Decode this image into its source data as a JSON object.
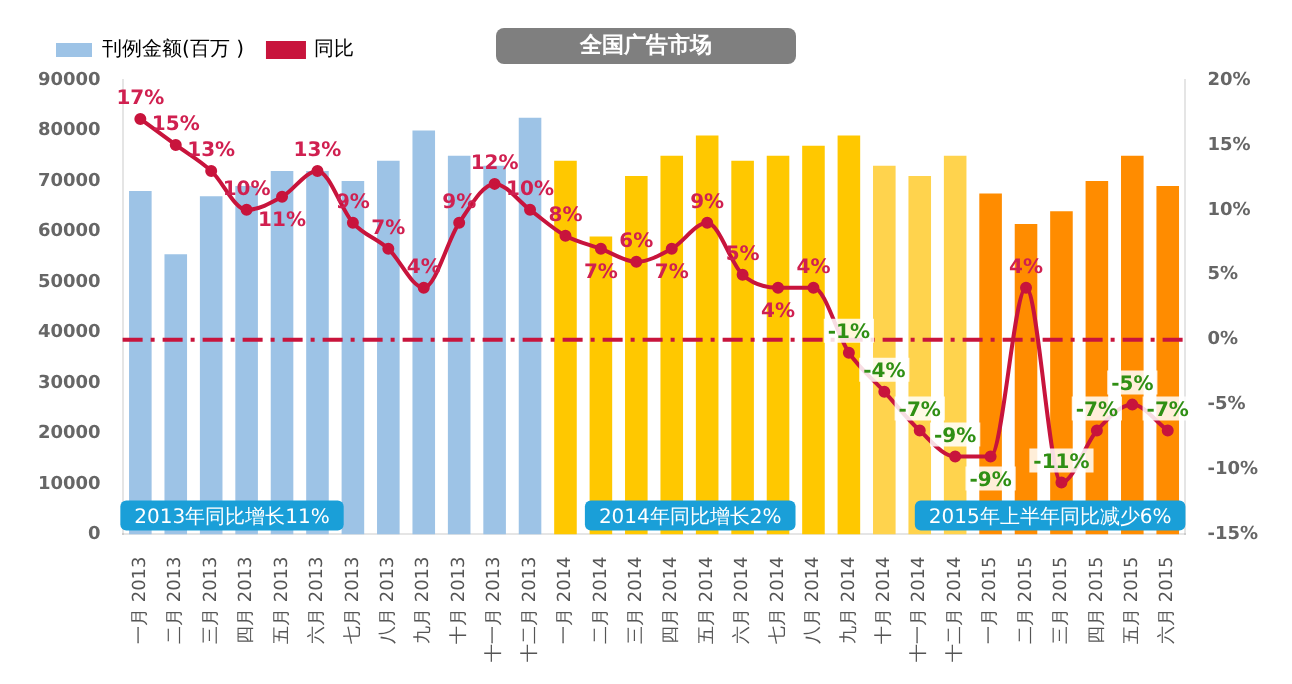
{
  "chart_data": {
    "type": "bar",
    "title": "全国广告市场",
    "categories": [
      "一月 2013",
      "二月 2013",
      "三月 2013",
      "四月 2013",
      "五月 2013",
      "六月 2013",
      "七月 2013",
      "八月 2013",
      "九月 2013",
      "十月 2013",
      "十一月 2013",
      "十二月 2013",
      "一月 2014",
      "二月 2014",
      "三月 2014",
      "四月 2014",
      "五月 2014",
      "六月 2014",
      "七月 2014",
      "八月 2014",
      "九月 2014",
      "十月 2014",
      "十一月 2014",
      "十二月 2014",
      "一月 2015",
      "二月 2015",
      "三月 2015",
      "四月 2015",
      "五月 2015",
      "六月 2015"
    ],
    "series": [
      {
        "name": "刊例金额(百万 )",
        "color": "#9dc3e6",
        "colors": [
          "#9dc3e6",
          "#9dc3e6",
          "#9dc3e6",
          "#9dc3e6",
          "#9dc3e6",
          "#9dc3e6",
          "#9dc3e6",
          "#9dc3e6",
          "#9dc3e6",
          "#9dc3e6",
          "#9dc3e6",
          "#9dc3e6",
          "#ffc800",
          "#ffc800",
          "#ffc800",
          "#ffc800",
          "#ffc800",
          "#ffc800",
          "#ffc800",
          "#ffc800",
          "#ffc800",
          "#ffd34d",
          "#ffd34d",
          "#ffd34d",
          "#ff8c00",
          "#ff8c00",
          "#ff8c00",
          "#ff8c00",
          "#ff8c00",
          "#ff8c00"
        ],
        "values": [
          68000,
          55500,
          67000,
          69000,
          72000,
          72000,
          70000,
          74000,
          80000,
          75000,
          73000,
          82500,
          74000,
          59000,
          71000,
          75000,
          79000,
          74000,
          75000,
          77000,
          79000,
          73000,
          71000,
          75000,
          67500,
          61500,
          64000,
          70000,
          75000,
          69000
        ]
      },
      {
        "name": "同比",
        "type": "line",
        "axis": "y2",
        "color": "#c8143c",
        "marker": "circle",
        "values": [
          17,
          15,
          13,
          10,
          11,
          13,
          9,
          7,
          4,
          9,
          12,
          10,
          8,
          7,
          6,
          7,
          9,
          5,
          4,
          4,
          -1,
          -4,
          -7,
          -9,
          -9,
          4,
          -11,
          -7,
          -5,
          -7
        ],
        "value_labels": [
          "17%",
          "15%",
          "13%",
          "10%",
          "11%",
          "13%",
          "9%",
          "7%",
          "4%",
          "9%",
          "12%",
          "10%",
          "8%",
          "7%",
          "6%",
          "7%",
          "9%",
          "5%",
          "4%",
          "4%",
          "-1%",
          "-4%",
          "-7%",
          "-9%",
          "-9%",
          "4%",
          "-11%",
          "-7%",
          "-5%",
          "-7%"
        ]
      }
    ],
    "ylim": [
      0,
      90000
    ],
    "yticks": [
      0,
      10000,
      20000,
      30000,
      40000,
      50000,
      60000,
      70000,
      80000,
      90000
    ],
    "y2lim": [
      -15,
      20
    ],
    "y2ticks": [
      {
        "value": -15,
        "label": "-15%"
      },
      {
        "value": -10,
        "label": "-10%"
      },
      {
        "value": -5,
        "label": "-5%"
      },
      {
        "value": 0,
        "label": "0%"
      },
      {
        "value": 5,
        "label": "5%"
      },
      {
        "value": 10,
        "label": "10%"
      },
      {
        "value": 15,
        "label": "15%"
      },
      {
        "value": 20,
        "label": "20%"
      }
    ],
    "ref_lines": [
      {
        "axis": "y2",
        "value": 0,
        "color": "#c8143c",
        "line_style": "dashdot"
      }
    ],
    "annotations": [
      "2013年同比增长11%",
      "2014年同比增长2%",
      "2015年上半年同比减少6%"
    ],
    "grid": false,
    "legend": "top left"
  }
}
